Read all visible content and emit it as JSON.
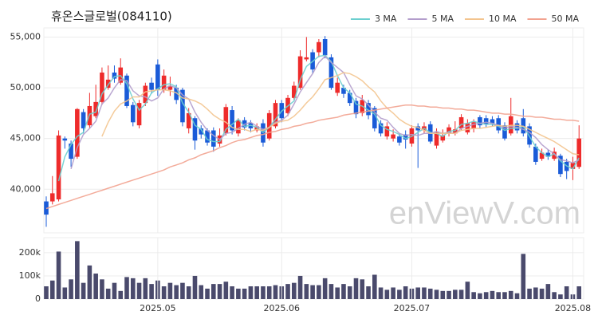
{
  "chart_data": [
    {
      "type": "candlestick",
      "title": "휴온스글로벌(084110)",
      "watermark": "enViewV.com",
      "up_color": "#ee2b2b",
      "down_color": "#1a5bd8",
      "grid": true,
      "legend": "top-right",
      "ylim": [
        35700,
        55900
      ],
      "yticks": [
        {
          "value": 40000,
          "label": "40,000"
        },
        {
          "value": 45000,
          "label": "45,000"
        },
        {
          "value": 50000,
          "label": "50,000"
        },
        {
          "value": 55000,
          "label": "55,000"
        }
      ],
      "open": [
        38800,
        38800,
        39000,
        45000,
        44500,
        43200,
        47600,
        46300,
        47200,
        48600,
        50000,
        51500,
        50500,
        51200,
        48300,
        46300,
        48500,
        50500,
        52300,
        49800,
        49800,
        50000,
        49800,
        46000,
        47000,
        46000,
        45800,
        45800,
        44500,
        45500,
        47800,
        45500,
        46800,
        46500,
        45800,
        46500,
        45000,
        46200,
        48500,
        47500,
        49000,
        50000,
        52800,
        53500,
        53500,
        54800,
        53000,
        49500,
        50000,
        49500,
        48700,
        47500,
        48500,
        48000,
        46500,
        45200,
        45000,
        45200,
        45400,
        44500,
        46200,
        45800,
        46400,
        44300,
        44800,
        45500,
        45500,
        46000,
        45600,
        46000,
        47100,
        47000,
        46900,
        47000,
        46300,
        45500,
        46500,
        47000,
        46200,
        44200,
        43000,
        43600,
        43000,
        43300,
        42700,
        42000,
        42200
      ],
      "high": [
        39300,
        41300,
        45800,
        45200,
        44800,
        48000,
        47900,
        49500,
        50300,
        52000,
        52200,
        52200,
        52900,
        51400,
        48600,
        48800,
        50500,
        51000,
        52800,
        51800,
        51100,
        50300,
        50000,
        48000,
        47200,
        46300,
        46000,
        46100,
        46000,
        48400,
        48200,
        47000,
        47100,
        46800,
        46500,
        46900,
        47800,
        48800,
        48800,
        49300,
        50600,
        53700,
        55000,
        53800,
        54800,
        55100,
        53300,
        51000,
        50300,
        49800,
        49000,
        49300,
        48800,
        48200,
        46800,
        46600,
        45900,
        45500,
        45800,
        46300,
        46500,
        46600,
        46700,
        46000,
        45900,
        46400,
        46700,
        47400,
        46900,
        46900,
        47300,
        47300,
        47200,
        47300,
        46600,
        49000,
        46800,
        47900,
        46500,
        44500,
        44000,
        43900,
        44100,
        43500,
        43000,
        43200,
        46300
      ],
      "low": [
        36300,
        38500,
        38800,
        44000,
        42200,
        43000,
        45500,
        46000,
        47000,
        48300,
        49800,
        50500,
        50300,
        48000,
        46200,
        46000,
        48200,
        49400,
        49200,
        49500,
        49200,
        48400,
        46200,
        45500,
        43900,
        45000,
        44300,
        43700,
        44200,
        45300,
        45400,
        45200,
        45800,
        45600,
        45600,
        44200,
        44800,
        46000,
        46600,
        47200,
        48800,
        49800,
        52600,
        51400,
        53000,
        52900,
        49800,
        49200,
        49000,
        48200,
        47000,
        47200,
        46900,
        45700,
        45200,
        44900,
        44700,
        44300,
        44000,
        44200,
        42100,
        45500,
        44500,
        44000,
        44600,
        45200,
        45300,
        45800,
        45400,
        45600,
        46000,
        46100,
        46200,
        45500,
        44800,
        45300,
        45500,
        45200,
        44100,
        42400,
        42800,
        42900,
        42800,
        41200,
        41000,
        40900,
        42000
      ],
      "close": [
        37500,
        39600,
        45300,
        44800,
        43000,
        47900,
        46000,
        48200,
        48600,
        51500,
        50800,
        50900,
        52000,
        48200,
        46600,
        48500,
        50200,
        49800,
        49800,
        51200,
        50200,
        48800,
        46600,
        47500,
        44800,
        45400,
        44600,
        44200,
        45300,
        48100,
        45800,
        46800,
        46100,
        46000,
        46200,
        44600,
        47500,
        48500,
        47000,
        49000,
        50200,
        53100,
        53000,
        51800,
        54500,
        53200,
        50000,
        50500,
        49400,
        48500,
        47400,
        48800,
        47300,
        46000,
        45500,
        46200,
        45400,
        44600,
        44900,
        46000,
        45800,
        46200,
        44700,
        45600,
        45300,
        46100,
        45900,
        47100,
        46500,
        46600,
        46300,
        46400,
        46500,
        45800,
        45000,
        47200,
        45800,
        45500,
        44400,
        42700,
        43600,
        43200,
        43700,
        41500,
        41800,
        42600,
        45000
      ],
      "series": [
        {
          "name": "3 MA",
          "color": "#6ccfcf",
          "values": [
            null,
            null,
            40800,
            43200,
            44400,
            45200,
            45600,
            47400,
            47600,
            49400,
            50300,
            51100,
            51200,
            50400,
            48900,
            47800,
            48400,
            49500,
            49900,
            50300,
            50400,
            50100,
            48500,
            47600,
            46300,
            45900,
            44900,
            44700,
            44700,
            45900,
            46400,
            46900,
            46200,
            46300,
            46100,
            45600,
            46100,
            46900,
            47700,
            48200,
            48700,
            50800,
            52100,
            52600,
            53100,
            53200,
            52600,
            51200,
            50000,
            49500,
            48400,
            48200,
            47800,
            47400,
            46300,
            45900,
            45700,
            45400,
            45000,
            45200,
            45600,
            46000,
            45600,
            45500,
            45200,
            45700,
            45800,
            46400,
            46500,
            46700,
            46500,
            46400,
            46400,
            46200,
            45800,
            46000,
            46000,
            46200,
            45200,
            44200,
            43600,
            43200,
            43500,
            42800,
            42300,
            42000,
            43100
          ]
        },
        {
          "name": "5 MA",
          "color": "#b39dcc",
          "values": [
            null,
            null,
            null,
            null,
            42000,
            44100,
            45400,
            46000,
            46700,
            48400,
            49000,
            50000,
            50800,
            50700,
            49700,
            49200,
            49100,
            48700,
            49000,
            49900,
            50200,
            50000,
            49300,
            48900,
            47600,
            46600,
            45800,
            45300,
            44900,
            45500,
            45600,
            46000,
            46400,
            46600,
            46200,
            45900,
            46100,
            46600,
            46800,
            47300,
            48400,
            49600,
            50500,
            51400,
            52500,
            53100,
            52500,
            52000,
            51500,
            50300,
            49200,
            48900,
            48300,
            47600,
            47000,
            46800,
            46100,
            45500,
            45300,
            45400,
            45300,
            45500,
            45500,
            45700,
            45500,
            45600,
            45500,
            46000,
            46200,
            46400,
            46500,
            46600,
            46500,
            46300,
            46000,
            46200,
            46100,
            45900,
            45600,
            45100,
            44400,
            43900,
            43500,
            42900,
            42800,
            42600,
            42900
          ]
        },
        {
          "name": "10 MA",
          "color": "#f3c48e",
          "values": [
            null,
            null,
            null,
            null,
            null,
            null,
            null,
            null,
            null,
            45200,
            46600,
            47700,
            48400,
            48700,
            49100,
            49100,
            49600,
            49700,
            49800,
            49800,
            49700,
            49500,
            49000,
            48900,
            48700,
            48400,
            47900,
            47300,
            46900,
            46600,
            46100,
            45900,
            45900,
            45700,
            45900,
            45800,
            46100,
            46500,
            46700,
            46800,
            47200,
            47800,
            48500,
            49100,
            49900,
            50800,
            51000,
            51200,
            51500,
            51400,
            51100,
            50700,
            50100,
            49600,
            48700,
            48000,
            47500,
            46900,
            46500,
            46200,
            46100,
            45800,
            45500,
            45500,
            45500,
            45500,
            45500,
            45800,
            45900,
            46000,
            46000,
            46100,
            46200,
            46300,
            46200,
            46300,
            46300,
            46200,
            45900,
            45600,
            45300,
            45000,
            44700,
            44300,
            43900,
            43500,
            43400
          ]
        },
        {
          "name": "50 MA",
          "color": "#f2a28f",
          "values": [
            38100,
            38300,
            38500,
            38700,
            38900,
            39100,
            39300,
            39500,
            39700,
            39900,
            40100,
            40300,
            40500,
            40700,
            40900,
            41100,
            41300,
            41500,
            41700,
            41900,
            42200,
            42400,
            42600,
            42900,
            43100,
            43400,
            43600,
            43800,
            44100,
            44300,
            44600,
            44800,
            44900,
            45100,
            45300,
            45400,
            45600,
            45700,
            45900,
            46000,
            46200,
            46300,
            46500,
            46600,
            46800,
            46900,
            47000,
            47100,
            47300,
            47400,
            47500,
            47600,
            47700,
            47800,
            47900,
            48000,
            48100,
            48200,
            48300,
            48300,
            48200,
            48200,
            48100,
            48100,
            48000,
            48000,
            47900,
            47900,
            47800,
            47800,
            47700,
            47600,
            47500,
            47500,
            47400,
            47400,
            47300,
            47200,
            47200,
            47100,
            47100,
            47000,
            46900,
            46900,
            46800,
            46800,
            46700
          ]
        }
      ]
    },
    {
      "type": "bar",
      "color": "#4a4a6c",
      "grid": true,
      "ylim": [
        0,
        265000
      ],
      "yticks": [
        0,
        {
          "value": 100000,
          "label": "100k"
        },
        {
          "value": 200000,
          "label": "200k"
        }
      ],
      "categories": [
        null,
        null,
        null,
        null,
        null,
        null,
        null,
        null,
        null,
        null,
        null,
        null,
        null,
        null,
        null,
        null,
        null,
        null,
        "2025.05",
        null,
        null,
        null,
        null,
        null,
        null,
        null,
        null,
        null,
        null,
        null,
        null,
        null,
        null,
        null,
        null,
        null,
        null,
        null,
        "2025.06",
        null,
        null,
        null,
        null,
        null,
        null,
        null,
        null,
        null,
        null,
        null,
        null,
        null,
        null,
        null,
        null,
        null,
        null,
        null,
        null,
        "2025.07",
        null,
        null,
        null,
        null,
        null,
        null,
        null,
        null,
        null,
        null,
        null,
        null,
        null,
        null,
        null,
        null,
        null,
        null,
        null,
        null,
        null,
        null,
        null,
        null,
        null,
        "2025.08",
        null
      ],
      "values": [
        55000,
        80000,
        205000,
        50000,
        85000,
        250000,
        70000,
        145000,
        110000,
        85000,
        45000,
        70000,
        35000,
        95000,
        90000,
        70000,
        90000,
        65000,
        80000,
        55000,
        70000,
        60000,
        70000,
        55000,
        100000,
        60000,
        45000,
        65000,
        65000,
        75000,
        55000,
        45000,
        45000,
        55000,
        55000,
        55000,
        55000,
        60000,
        55000,
        65000,
        70000,
        100000,
        65000,
        60000,
        60000,
        90000,
        65000,
        50000,
        65000,
        55000,
        90000,
        85000,
        55000,
        105000,
        50000,
        40000,
        50000,
        40000,
        55000,
        45000,
        50000,
        50000,
        45000,
        40000,
        35000,
        35000,
        40000,
        40000,
        75000,
        30000,
        25000,
        30000,
        35000,
        30000,
        30000,
        35000,
        25000,
        195000,
        45000,
        50000,
        45000,
        65000,
        30000,
        20000,
        55000,
        20000,
        55000
      ]
    }
  ]
}
